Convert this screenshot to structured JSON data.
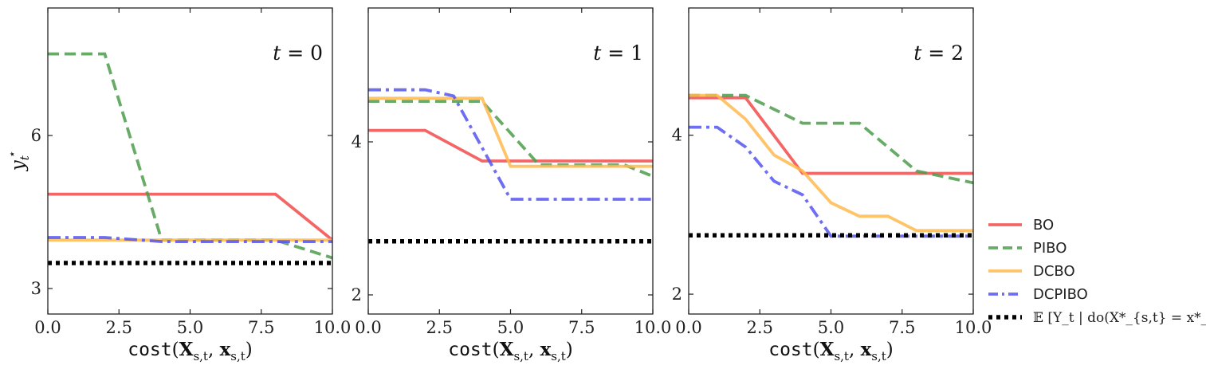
{
  "chart_data": [
    {
      "type": "line",
      "panel_label": "t = 0",
      "ylabel": "y_t^*",
      "xlabel": "cost(X_{s,t}, x_{s,t})",
      "xlim": [
        0,
        10
      ],
      "ylim": [
        2.5,
        8.5
      ],
      "xticks": [
        "0.0",
        "2.5",
        "5.0",
        "7.5",
        "10.0"
      ],
      "yticks": [
        "3",
        "6"
      ],
      "series": [
        {
          "name": "BO",
          "x": [
            0,
            8,
            10
          ],
          "y": [
            4.85,
            4.85,
            3.95
          ]
        },
        {
          "name": "PIBO",
          "x": [
            0,
            2,
            4,
            8,
            10
          ],
          "y": [
            7.6,
            7.6,
            3.95,
            3.95,
            3.6
          ]
        },
        {
          "name": "DCBO",
          "x": [
            0,
            10
          ],
          "y": [
            3.95,
            3.95
          ]
        },
        {
          "name": "DCPIBO",
          "x": [
            0,
            2,
            4,
            10
          ],
          "y": [
            4.0,
            4.0,
            3.92,
            3.92
          ]
        },
        {
          "name": "E[Y_t | do(X*_{s,t} = x*_{s,t})]",
          "x": [
            0,
            10
          ],
          "y": [
            3.5,
            3.5
          ]
        }
      ]
    },
    {
      "type": "line",
      "panel_label": "t = 1",
      "ylabel": "",
      "xlabel": "cost(X_{s,t}, x_{s,t})",
      "xlim": [
        0,
        10
      ],
      "ylim": [
        1.75,
        5.75
      ],
      "xticks": [
        "0.0",
        "2.5",
        "5.0",
        "7.5",
        "10.0"
      ],
      "yticks": [
        "2",
        "4"
      ],
      "series": [
        {
          "name": "BO",
          "x": [
            0,
            2,
            4,
            10
          ],
          "y": [
            4.15,
            4.15,
            3.75,
            3.75
          ]
        },
        {
          "name": "PIBO",
          "x": [
            0,
            4,
            6,
            9,
            10
          ],
          "y": [
            4.53,
            4.53,
            3.7,
            3.7,
            3.55
          ]
        },
        {
          "name": "DCBO",
          "x": [
            0,
            4,
            5,
            10
          ],
          "y": [
            4.57,
            4.57,
            3.68,
            3.68
          ]
        },
        {
          "name": "DCPIBO",
          "x": [
            0,
            2,
            3,
            5,
            10
          ],
          "y": [
            4.68,
            4.68,
            4.6,
            3.25,
            3.25
          ]
        },
        {
          "name": "E[Y_t | do(X*_{s,t} = x*_{s,t})]",
          "x": [
            0,
            10
          ],
          "y": [
            2.7,
            2.7
          ]
        }
      ]
    },
    {
      "type": "line",
      "panel_label": "t = 2",
      "ylabel": "",
      "xlabel": "cost(X_{s,t}, x_{s,t})",
      "xlim": [
        0,
        10
      ],
      "ylim": [
        1.75,
        5.6
      ],
      "xticks": [
        "0.0",
        "2.5",
        "5.0",
        "7.5",
        "10.0"
      ],
      "yticks": [
        "2",
        "4"
      ],
      "series": [
        {
          "name": "BO",
          "x": [
            0,
            2,
            4,
            10
          ],
          "y": [
            4.47,
            4.47,
            3.52,
            3.52
          ]
        },
        {
          "name": "PIBO",
          "x": [
            0,
            2,
            4,
            6,
            8,
            10
          ],
          "y": [
            4.5,
            4.5,
            4.15,
            4.15,
            3.55,
            3.4
          ]
        },
        {
          "name": "DCBO",
          "x": [
            0,
            1,
            2,
            3,
            4,
            5,
            6,
            7,
            8,
            10
          ],
          "y": [
            4.5,
            4.5,
            4.2,
            3.75,
            3.55,
            3.15,
            2.98,
            2.98,
            2.8,
            2.8
          ]
        },
        {
          "name": "DCPIBO",
          "x": [
            0,
            1,
            2,
            3,
            4,
            5,
            10
          ],
          "y": [
            4.1,
            4.1,
            3.85,
            3.42,
            3.25,
            2.73,
            2.73
          ]
        },
        {
          "name": "E[Y_t | do(X*_{s,t} = x*_{s,t})]",
          "x": [
            0,
            10
          ],
          "y": [
            2.74,
            2.74
          ]
        }
      ]
    }
  ],
  "legend": {
    "placement": "lower-right, outside",
    "items": [
      {
        "label": "BO",
        "color": "#f24b4b",
        "style": "solid"
      },
      {
        "label": "PIBO",
        "color": "#4c9c4c",
        "style": "dashed"
      },
      {
        "label": "DCBO",
        "color": "#ffb84d",
        "style": "solid"
      },
      {
        "label": "DCPIBO",
        "color": "#5555f0",
        "style": "dashdot"
      },
      {
        "label": "𝔼 [Y_t | do(X*_{s,t} = x*_{s,t})]",
        "color": "#000000",
        "style": "dotted"
      }
    ]
  }
}
